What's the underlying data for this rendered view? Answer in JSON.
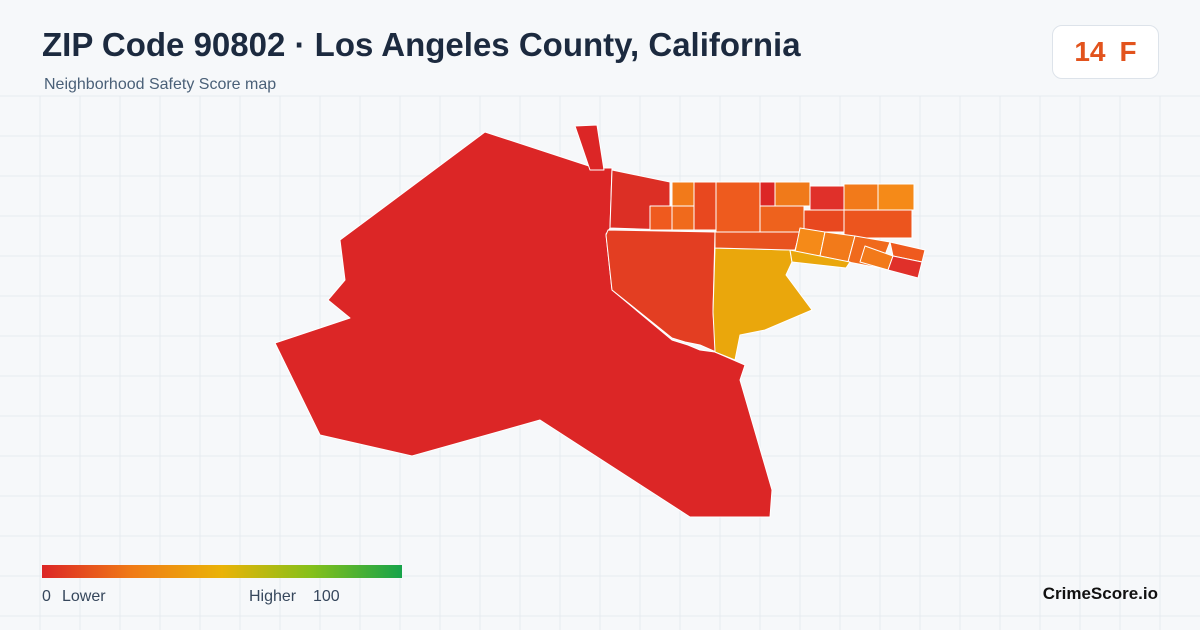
{
  "header": {
    "title": "ZIP Code 90802 · Los Angeles County, California",
    "subtitle": "Neighborhood Safety Score map"
  },
  "score": {
    "value": 14,
    "grade": "F"
  },
  "legend": {
    "min": 0,
    "min_label": "Lower",
    "max_label": "Higher",
    "max": 100
  },
  "brand": "CrimeScore.io"
}
